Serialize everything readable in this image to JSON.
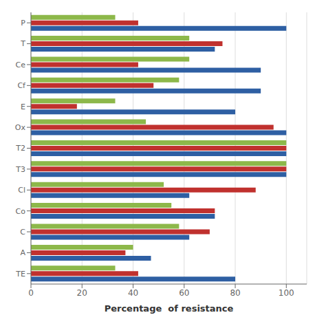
{
  "chart_data": {
    "type": "bar",
    "orientation": "horizontal",
    "categories": [
      "P",
      "T",
      "Ce",
      "Cf",
      "E",
      "Ox",
      "T2",
      "T3",
      "Cl",
      "Co",
      "C",
      "A",
      "TE"
    ],
    "series": [
      {
        "color": "#8DB84A",
        "values": [
          33,
          62,
          62,
          58,
          33,
          45,
          100,
          100,
          52,
          55,
          58,
          40,
          33
        ]
      },
      {
        "color": "#C0312E",
        "values": [
          42,
          75,
          42,
          48,
          18,
          95,
          100,
          100,
          88,
          72,
          70,
          37,
          42
        ]
      },
      {
        "color": "#2E5FA3",
        "values": [
          100,
          72,
          90,
          90,
          80,
          100,
          100,
          100,
          62,
          72,
          62,
          47,
          80
        ]
      }
    ],
    "xlabel": "Percentage  of resistance",
    "xlim": [
      0,
      108
    ],
    "xticks": [
      0,
      20,
      40,
      60,
      80,
      100
    ],
    "grid": true
  }
}
